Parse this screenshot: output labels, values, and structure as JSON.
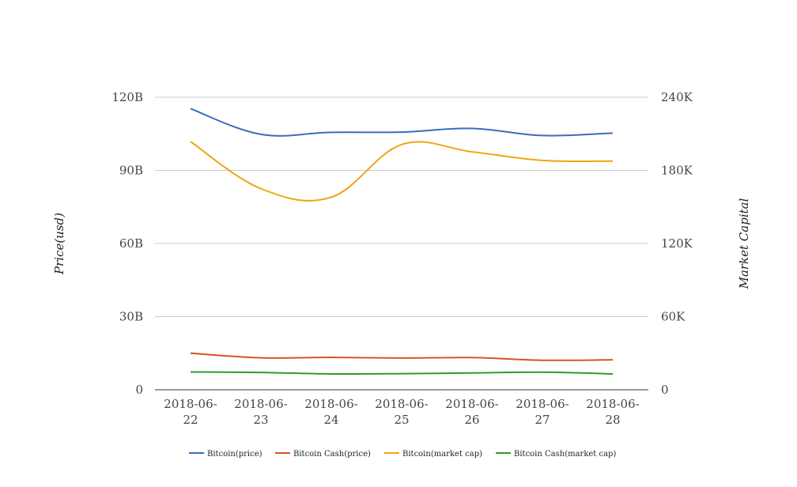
{
  "chart_data": {
    "type": "line",
    "title": "",
    "categories": [
      "2018-06-22",
      "2018-06-23",
      "2018-06-24",
      "2018-06-25",
      "2018-06-26",
      "2018-06-27",
      "2018-06-28"
    ],
    "category_lines": [
      [
        "2018-06-",
        "22"
      ],
      [
        "2018-06-",
        "23"
      ],
      [
        "2018-06-",
        "24"
      ],
      [
        "2018-06-",
        "25"
      ],
      [
        "2018-06-",
        "26"
      ],
      [
        "2018-06-",
        "27"
      ],
      [
        "2018-06-",
        "28"
      ]
    ],
    "y_left": {
      "label": "Price(usd)",
      "range": [
        0,
        120000000000
      ],
      "ticks": [
        0,
        30000000000,
        60000000000,
        90000000000,
        120000000000
      ],
      "tick_labels": [
        "0",
        "30B",
        "60B",
        "90B",
        "120B"
      ]
    },
    "y_right": {
      "label": "Market Capital",
      "range": [
        0,
        240000
      ],
      "ticks": [
        0,
        60000,
        120000,
        180000,
        240000
      ],
      "tick_labels": [
        "0",
        "60K",
        "120K",
        "180K",
        "240K"
      ]
    },
    "grid": true,
    "legend_position": "bottom",
    "series": [
      {
        "name": "Bitcoin(price)",
        "color": "#3a6bbf",
        "axis": "left",
        "values": [
          115300000000,
          104800000000,
          105600000000,
          105700000000,
          107200000000,
          104300000000,
          105300000000
        ]
      },
      {
        "name": "Bitcoin Cash(price)",
        "color": "#d9541e",
        "axis": "left",
        "values": [
          15000000000,
          13100000000,
          13300000000,
          13000000000,
          13200000000,
          12100000000,
          12300000000
        ]
      },
      {
        "name": "Bitcoin(market cap)",
        "color": "#f2a30f",
        "axis": "left",
        "values": [
          101800000000,
          82500000000,
          79000000000,
          100600000000,
          97600000000,
          94100000000,
          93800000000
        ]
      },
      {
        "name": "Bitcoin Cash(market cap)",
        "color": "#2e9a2e",
        "axis": "left",
        "values": [
          7300000000,
          7100000000,
          6500000000,
          6600000000,
          6900000000,
          7200000000,
          6500000000
        ]
      }
    ]
  }
}
